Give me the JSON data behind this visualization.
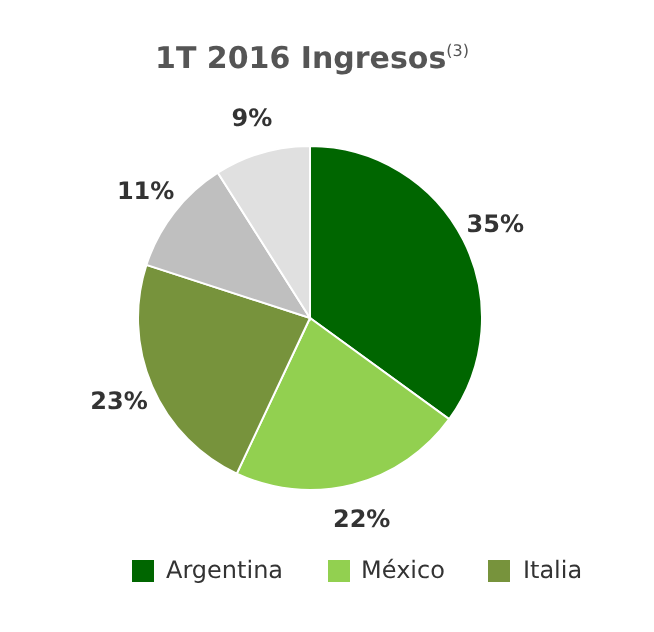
{
  "chart_data": {
    "type": "pie",
    "title": "1T 2016 Ingresos$^{(3)}$",
    "categories": [
      "Argentina",
      "México",
      "Italia",
      null,
      null
    ],
    "values": [
      35,
      22,
      23,
      11,
      9
    ],
    "value_labels": [
      "35%",
      "22%",
      "23%",
      "11%",
      "9%"
    ],
    "colors": [
      "#006600",
      "#92d050",
      "#77933c",
      "#bfbfbf",
      "#e0e0e0"
    ],
    "legend": "bottom"
  }
}
